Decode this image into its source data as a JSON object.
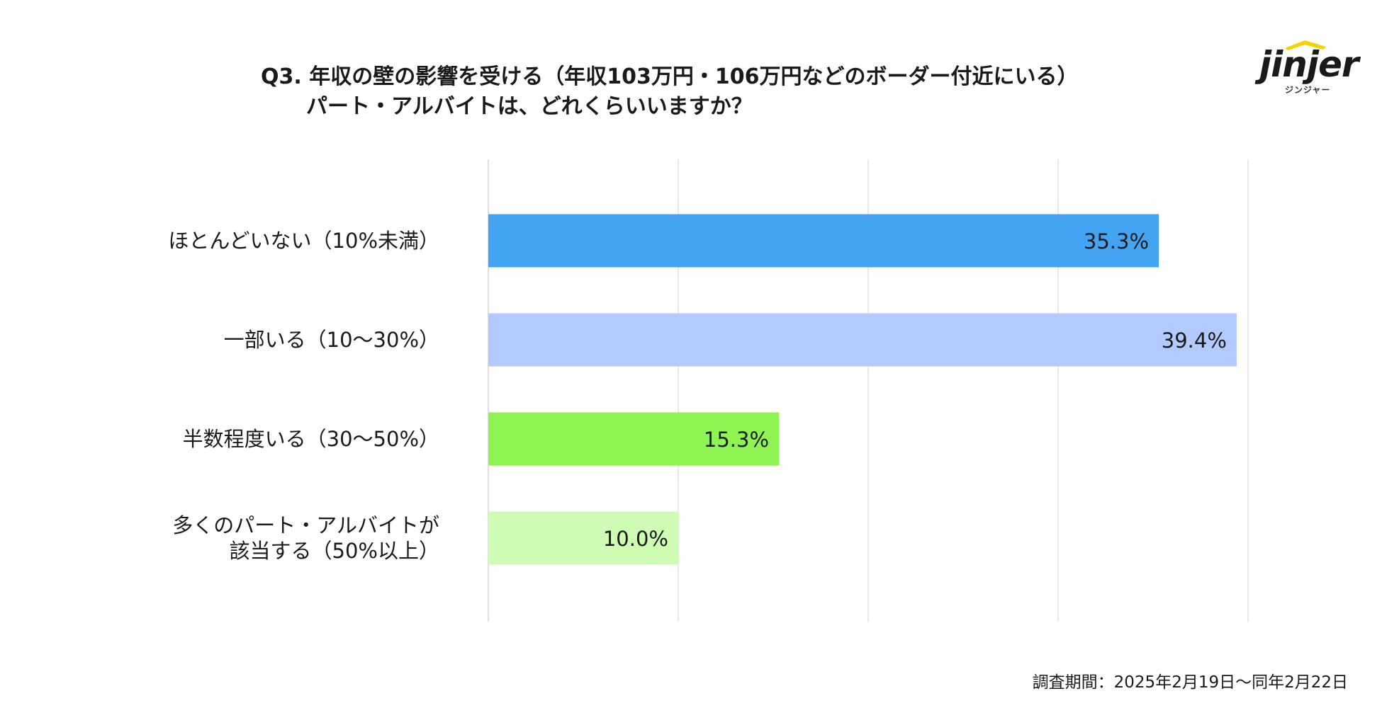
{
  "title": {
    "line1": "Q3. 年収の壁の影響を受ける（年収103万円・106万円などのボーダー付近にいる）",
    "line2": "パート・アルバイトは、どれくらいいますか？"
  },
  "logo": {
    "text": "jinjer",
    "subtitle": "ジンジャー",
    "accent_color": "#f5d200"
  },
  "footnote": "調査期間：2025年2月19日〜同年2月22日",
  "chart_data": {
    "type": "bar",
    "orientation": "horizontal",
    "categories": [
      "ほとんどいない（10%未満）",
      "一部いる（10〜30%）",
      "半数程度いる（30〜50%）",
      "多くのパート・アルバイトが\n該当する（50%以上）"
    ],
    "values": [
      35.3,
      39.4,
      15.3,
      10.0
    ],
    "value_labels": [
      "35.3%",
      "39.4%",
      "15.3%",
      "10.0%"
    ],
    "colors": [
      "#43a4f3",
      "#b2cafd",
      "#8ef451",
      "#cefcb5"
    ],
    "xlim": [
      0,
      40
    ],
    "grid": true,
    "legend": "none"
  }
}
